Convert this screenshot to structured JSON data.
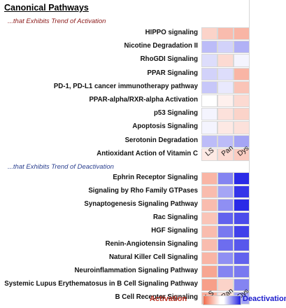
{
  "title": "Canonical Pathways",
  "subtitle_activation": "...that Exhibits Trend of Activation",
  "subtitle_deactivation": "...that Exhibits Trend of Deactivation",
  "legend": {
    "activation": "Activation",
    "deactivation": "Deactivation"
  },
  "chart_data": [
    {
      "type": "heatmap",
      "title": "...that Exhibits Trend of Activation",
      "columns": [
        "LS",
        "Pan",
        "Dys"
      ],
      "rows": [
        "HIPPO signaling",
        "Nicotine Degradation II",
        "RhoGDI Signaling",
        "PPAR Signaling",
        "PD-1, PD-L1 cancer immunotherapy pathway",
        "PPAR-alpha/RXR-alpha Activation",
        "p53 Signaling",
        "Apoptosis Signaling",
        "Serotonin Degradation",
        "Antioxidant Action of Vitamin C"
      ],
      "values": [
        [
          0.3,
          0.45,
          0.5
        ],
        [
          -0.3,
          -0.2,
          -0.35
        ],
        [
          -0.15,
          0.25,
          -0.05
        ],
        [
          -0.2,
          -0.15,
          0.5
        ],
        [
          -0.25,
          -0.1,
          0.4
        ],
        [
          0.0,
          0.1,
          0.25
        ],
        [
          -0.05,
          0.2,
          0.3
        ],
        [
          -0.05,
          0.15,
          0.2
        ],
        [
          -0.3,
          -0.3,
          -0.4
        ],
        [
          0.15,
          0.25,
          0.35
        ]
      ]
    },
    {
      "type": "heatmap",
      "title": "...that Exhibits Trend of Deactivation",
      "columns": [
        "LS",
        "Pan",
        "Dys"
      ],
      "rows": [
        "Ephrin Receptor Signaling",
        "Signaling by Rho Family GTPases",
        "Synaptogenesis Signaling Pathway",
        "Rac Signaling",
        "HGF Signaling",
        "Renin-Angiotensin Signaling",
        "Natural Killer Cell Signaling",
        "Neuroinflammation Signaling Pathway",
        "Systemic Lupus Erythematosus in B Cell Signaling Pathway",
        "B Cell Receptor Signaling"
      ],
      "values": [
        [
          0.5,
          -0.55,
          -0.95
        ],
        [
          0.45,
          -0.4,
          -0.9
        ],
        [
          0.45,
          -0.5,
          -0.95
        ],
        [
          0.4,
          -0.7,
          -0.8
        ],
        [
          0.45,
          -0.6,
          -0.85
        ],
        [
          0.45,
          -0.65,
          -0.75
        ],
        [
          0.5,
          -0.5,
          -0.7
        ],
        [
          0.6,
          -0.55,
          -0.6
        ],
        [
          0.65,
          0.3,
          -0.55
        ],
        [
          0.55,
          0.2,
          -0.4
        ]
      ]
    }
  ],
  "colors": {
    "activation": "#f26b4a",
    "neutral": "#ffffff",
    "deactivation": "#1f1fe6"
  }
}
